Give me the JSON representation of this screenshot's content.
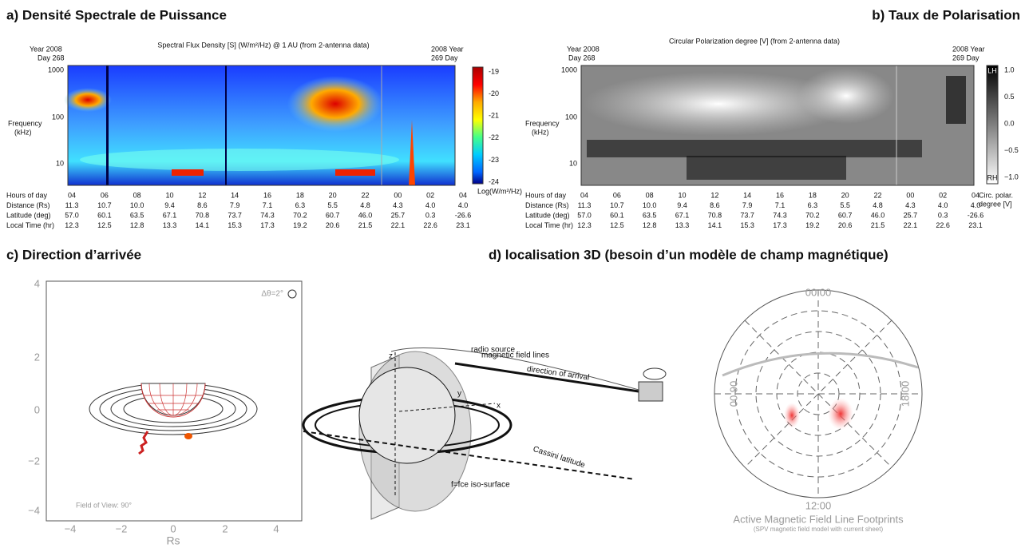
{
  "panel_a": {
    "title": "a) Densité Spectrale de Puissance",
    "plot_title": "Spectral Flux Density [S] (W/m²/Hz) @ 1 AU (from 2-antenna data)",
    "start_label": [
      "Year 2008",
      "Day 268"
    ],
    "end_label": [
      "2008 Year",
      "269 Day"
    ],
    "y_label": [
      "Frequency",
      "(kHz)"
    ],
    "y_ticks": [
      "1000",
      "100",
      "10"
    ],
    "colorbar_ticks": [
      "-19",
      "-20",
      "-21",
      "-22",
      "-23",
      "-24"
    ],
    "colorbar_label": "Log(W/m²/Hz)",
    "table": {
      "rows": [
        [
          "Hours of day",
          "04",
          "06",
          "08",
          "10",
          "12",
          "14",
          "16",
          "18",
          "20",
          "22",
          "00",
          "02",
          "04"
        ],
        [
          "Distance (Rs)",
          "11.3",
          "10.7",
          "10.0",
          "9.4",
          "8.6",
          "7.9",
          "7.1",
          "6.3",
          "5.5",
          "4.8",
          "4.3",
          "4.0",
          "4.0"
        ],
        [
          "Latitude (deg)",
          "57.0",
          "60.1",
          "63.5",
          "67.1",
          "70.8",
          "73.7",
          "74.3",
          "70.2",
          "60.7",
          "46.0",
          "25.7",
          "0.3",
          "-26.6"
        ],
        [
          "Local Time (hr)",
          "12.3",
          "12.5",
          "12.8",
          "13.3",
          "14.1",
          "15.3",
          "17.3",
          "19.2",
          "20.6",
          "21.5",
          "22.1",
          "22.6",
          "23.1"
        ]
      ]
    }
  },
  "panel_b": {
    "title": "b) Taux de Polarisation",
    "plot_title": "Circular Polarization degree [V] (from 2-antenna data)",
    "start_label": [
      "Year 2008",
      "Day 268"
    ],
    "end_label": [
      "2008 Year",
      "269 Day"
    ],
    "y_label": [
      "Frequency",
      "(kHz)"
    ],
    "y_ticks": [
      "1000",
      "100",
      "10"
    ],
    "colorbar_ends": [
      "LH",
      "RH"
    ],
    "colorbar_ticks": [
      "1.0",
      "0.5",
      "0.0",
      "−0.5",
      "−1.0"
    ],
    "colorbar_label": [
      "Circ. polar.",
      "degree [V]"
    ],
    "table": {
      "rows": [
        [
          "Hours of day",
          "04",
          "06",
          "08",
          "10",
          "12",
          "14",
          "16",
          "18",
          "20",
          "22",
          "00",
          "02",
          "04"
        ],
        [
          "Distance (Rs)",
          "11.3",
          "10.7",
          "10.0",
          "9.4",
          "8.6",
          "7.9",
          "7.1",
          "6.3",
          "5.5",
          "4.8",
          "4.3",
          "4.0",
          "4.0"
        ],
        [
          "Latitude (deg)",
          "57.0",
          "60.1",
          "63.5",
          "67.1",
          "70.8",
          "73.7",
          "74.3",
          "70.2",
          "60.7",
          "46.0",
          "25.7",
          "0.3",
          "-26.6"
        ],
        [
          "Local Time (hr)",
          "12.3",
          "12.5",
          "12.8",
          "13.3",
          "14.1",
          "15.3",
          "17.3",
          "19.2",
          "20.6",
          "21.5",
          "22.1",
          "22.6",
          "23.1"
        ]
      ]
    }
  },
  "panel_c": {
    "title": "c) Direction d’arrivée",
    "y_ticks": [
      "4",
      "2",
      "0",
      "−2",
      "−4"
    ],
    "x_ticks": [
      "−4",
      "−2",
      "0",
      "2",
      "4"
    ],
    "x_label": "Rs",
    "resolution": "Δθ=2°",
    "field_of_view": "Field of View: 90°"
  },
  "panel_d": {
    "title": "d) localisation 3D (besoin d’un modèle de champ magnétique)",
    "diagram": {
      "z": "z",
      "y": "y",
      "x": "x",
      "field_lines": "magnetic field lines",
      "radio_source": "radio source",
      "arrival": "direction of arrival",
      "latitude": "Cassini latitude",
      "iso_surface": "f=fce iso-surface"
    },
    "polar": {
      "top": "00:00",
      "left": "06:00",
      "right": "18:00",
      "bottom": "12:00",
      "caption": "Active Magnetic Field Line Footprints",
      "subcaption": "(SPV magnetic field model with current sheet)"
    }
  }
}
